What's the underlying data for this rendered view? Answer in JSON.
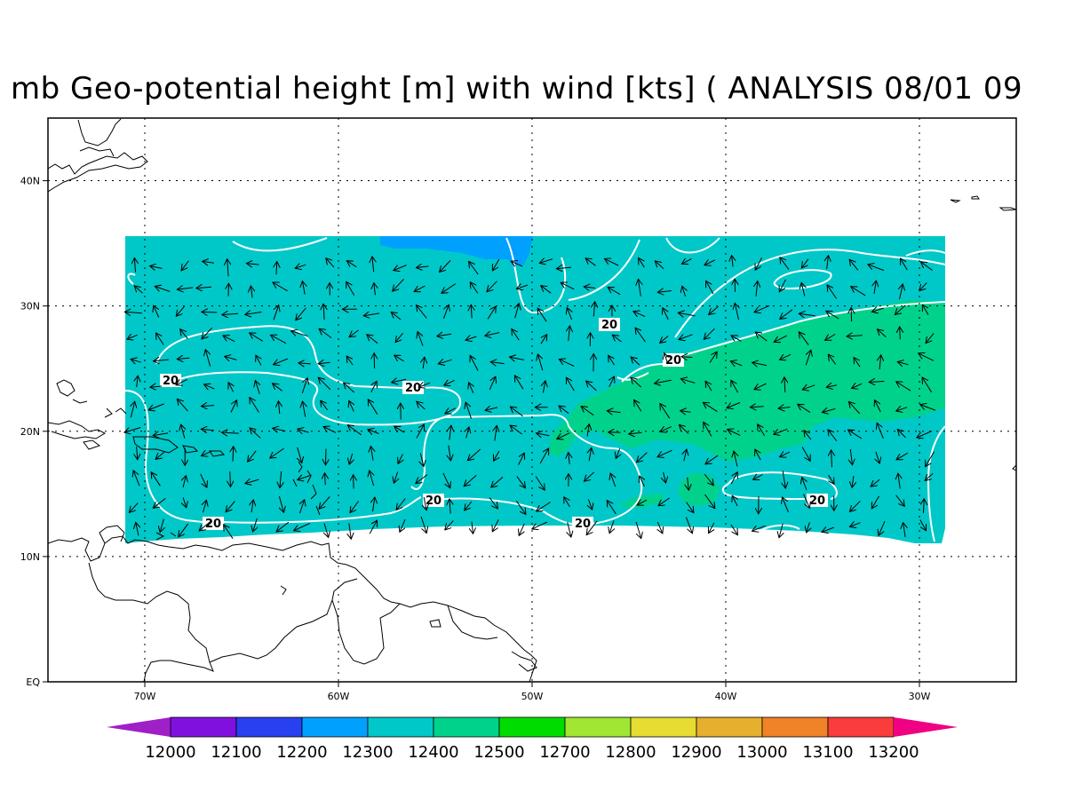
{
  "title": "mb Geo-potential height [m] with wind [kts] ( ANALYSIS 08/01 09",
  "map": {
    "lon_range": [
      -75,
      -25
    ],
    "lat_range": [
      0,
      45
    ],
    "lon_ticks": [
      {
        "value": -70,
        "label": "70W"
      },
      {
        "value": -60,
        "label": "60W"
      },
      {
        "value": -50,
        "label": "50W"
      },
      {
        "value": -40,
        "label": "40W"
      },
      {
        "value": -30,
        "label": "30W"
      }
    ],
    "lat_ticks": [
      {
        "value": 0,
        "label": "EQ"
      },
      {
        "value": 10,
        "label": "10N"
      },
      {
        "value": 20,
        "label": "20N"
      },
      {
        "value": 30,
        "label": "30N"
      },
      {
        "value": 40,
        "label": "40N"
      }
    ],
    "grid": "dotted",
    "contour_labels": [
      "20",
      "20",
      "20",
      "20",
      "20",
      "20",
      "20",
      "20"
    ]
  },
  "colorbar": {
    "values": [
      "12000",
      "12100",
      "12200",
      "12300",
      "12400",
      "12500",
      "12700",
      "12800",
      "12900",
      "13000",
      "13100",
      "13200"
    ],
    "colors": [
      "#a020c8",
      "#8010e0",
      "#2840f0",
      "#00a0ff",
      "#00c8c8",
      "#00d28c",
      "#00dc00",
      "#a0e632",
      "#e6dc32",
      "#e6af2d",
      "#f08228",
      "#fa3c3c",
      "#f00082"
    ]
  },
  "fill_colors": {
    "base": "#00c8c8",
    "high": "#00d28c",
    "low": "#00a0ff"
  }
}
